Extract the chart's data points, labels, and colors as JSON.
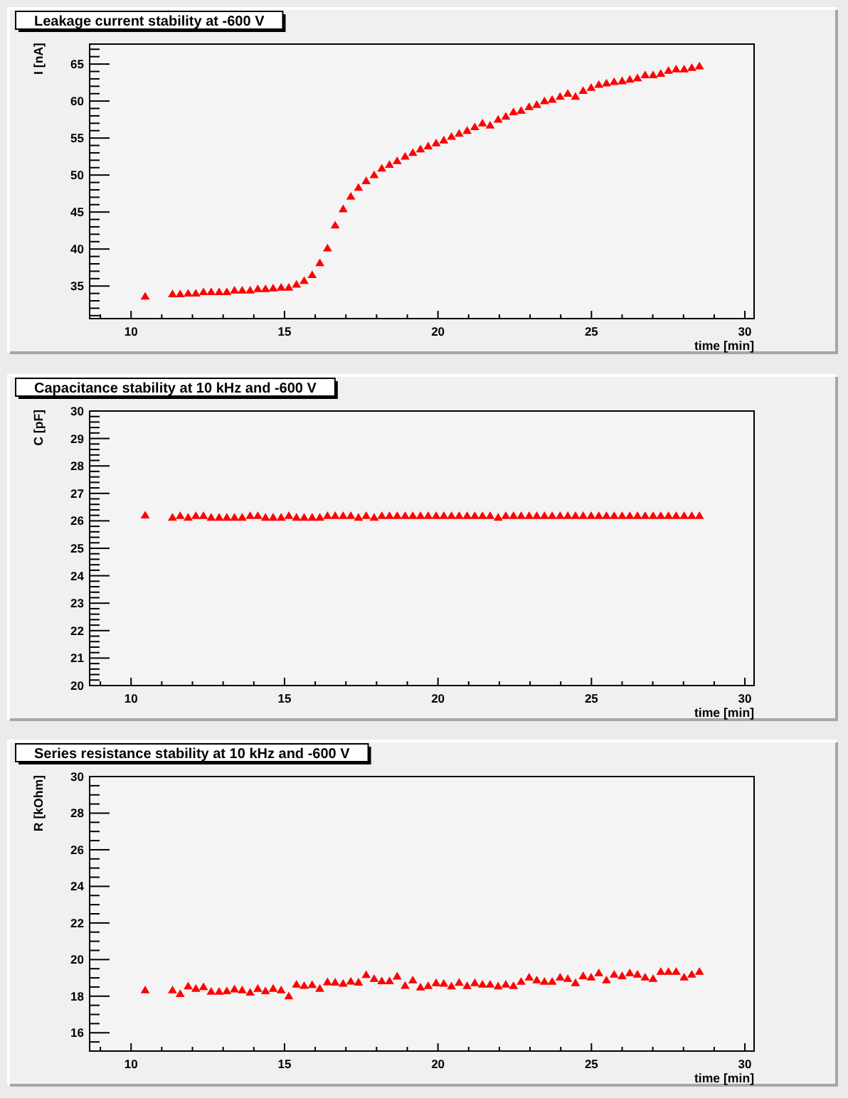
{
  "chart_data": [
    {
      "type": "scatter",
      "title": "Leakage current stability at -600 V",
      "xlabel": "time [min]",
      "ylabel": "I [nA]",
      "color": "#ff0000",
      "marker": "triangle",
      "x": [
        10.46,
        11.35,
        11.6,
        11.86,
        12.11,
        12.36,
        12.61,
        12.87,
        13.12,
        13.37,
        13.62,
        13.88,
        14.13,
        14.38,
        14.63,
        14.89,
        15.14,
        15.39,
        15.64,
        15.9,
        16.15,
        16.4,
        16.65,
        16.91,
        17.16,
        17.41,
        17.66,
        17.92,
        18.17,
        18.42,
        18.67,
        18.93,
        19.18,
        19.43,
        19.68,
        19.94,
        20.19,
        20.44,
        20.69,
        20.95,
        21.2,
        21.45,
        21.7,
        21.96,
        22.21,
        22.46,
        22.71,
        22.97,
        23.22,
        23.47,
        23.72,
        23.98,
        24.23,
        24.48,
        24.73,
        24.99,
        25.24,
        25.49,
        25.74,
        26.0,
        26.25,
        26.5,
        26.75,
        27.01,
        27.26,
        27.51,
        27.76,
        28.02,
        28.27,
        28.52
      ],
      "values": [
        33.6,
        33.9,
        33.9,
        34.0,
        34.0,
        34.2,
        34.2,
        34.2,
        34.2,
        34.4,
        34.4,
        34.4,
        34.6,
        34.6,
        34.7,
        34.8,
        34.8,
        35.2,
        35.7,
        36.5,
        38.1,
        40.1,
        43.2,
        45.4,
        47.1,
        48.3,
        49.2,
        50.0,
        50.9,
        51.4,
        51.9,
        52.5,
        53.0,
        53.5,
        53.9,
        54.3,
        54.7,
        55.2,
        55.6,
        56.0,
        56.5,
        57.0,
        56.7,
        57.5,
        57.9,
        58.5,
        58.7,
        59.2,
        59.5,
        60.0,
        60.2,
        60.6,
        61.0,
        60.6,
        61.4,
        61.8,
        62.2,
        62.4,
        62.6,
        62.7,
        62.9,
        63.1,
        63.5,
        63.5,
        63.7,
        64.1,
        64.3,
        64.3,
        64.5,
        64.7
      ],
      "xlim": [
        8.65,
        30.3
      ],
      "ylim": [
        30.6,
        67.7
      ],
      "xticks": [
        {
          "value": 9,
          "label": null
        },
        10,
        {
          "value": 11,
          "label": null
        },
        {
          "value": 12,
          "label": null
        },
        {
          "value": 13,
          "label": null
        },
        {
          "value": 14,
          "label": null
        },
        15,
        {
          "value": 16,
          "label": null
        },
        {
          "value": 17,
          "label": null
        },
        {
          "value": 18,
          "label": null
        },
        {
          "value": 19,
          "label": null
        },
        20,
        {
          "value": 21,
          "label": null
        },
        {
          "value": 22,
          "label": null
        },
        {
          "value": 23,
          "label": null
        },
        {
          "value": 24,
          "label": null
        },
        25,
        {
          "value": 26,
          "label": null
        },
        {
          "value": 27,
          "label": null
        },
        {
          "value": 28,
          "label": null
        },
        {
          "value": 29,
          "label": null
        },
        30
      ],
      "yticks": [
        {
          "value": 31,
          "label": null
        },
        {
          "value": 32,
          "label": null
        },
        {
          "value": 33,
          "label": null
        },
        {
          "value": 34,
          "label": null
        },
        35,
        {
          "value": 36,
          "label": null
        },
        {
          "value": 37,
          "label": null
        },
        {
          "value": 38,
          "label": null
        },
        {
          "value": 39,
          "label": null
        },
        40,
        {
          "value": 41,
          "label": null
        },
        {
          "value": 42,
          "label": null
        },
        {
          "value": 43,
          "label": null
        },
        {
          "value": 44,
          "label": null
        },
        45,
        {
          "value": 46,
          "label": null
        },
        {
          "value": 47,
          "label": null
        },
        {
          "value": 48,
          "label": null
        },
        {
          "value": 49,
          "label": null
        },
        50,
        {
          "value": 51,
          "label": null
        },
        {
          "value": 52,
          "label": null
        },
        {
          "value": 53,
          "label": null
        },
        {
          "value": 54,
          "label": null
        },
        55,
        {
          "value": 56,
          "label": null
        },
        {
          "value": 57,
          "label": null
        },
        {
          "value": 58,
          "label": null
        },
        {
          "value": 59,
          "label": null
        },
        60,
        {
          "value": 61,
          "label": null
        },
        {
          "value": 62,
          "label": null
        },
        {
          "value": 63,
          "label": null
        },
        {
          "value": 64,
          "label": null
        },
        65,
        {
          "value": 66,
          "label": null
        },
        {
          "value": 67,
          "label": null
        }
      ]
    },
    {
      "type": "scatter",
      "title": "Capacitance stability at 10 kHz and -600 V",
      "xlabel": "time [min]",
      "ylabel": "C [pF]",
      "color": "#ff0000",
      "marker": "triangle",
      "x": [
        10.46,
        11.35,
        11.6,
        11.86,
        12.11,
        12.36,
        12.61,
        12.87,
        13.12,
        13.37,
        13.62,
        13.88,
        14.13,
        14.38,
        14.63,
        14.89,
        15.14,
        15.39,
        15.64,
        15.9,
        16.15,
        16.4,
        16.65,
        16.91,
        17.16,
        17.41,
        17.66,
        17.92,
        18.17,
        18.42,
        18.67,
        18.93,
        19.18,
        19.43,
        19.68,
        19.94,
        20.19,
        20.44,
        20.69,
        20.95,
        21.2,
        21.45,
        21.7,
        21.96,
        22.21,
        22.46,
        22.71,
        22.97,
        23.22,
        23.47,
        23.72,
        23.98,
        24.23,
        24.48,
        24.73,
        24.99,
        25.24,
        25.49,
        25.74,
        26.0,
        26.25,
        26.5,
        26.75,
        27.01,
        27.26,
        27.51,
        27.76,
        28.02,
        28.27,
        28.52
      ],
      "values": [
        26.2,
        26.12,
        26.18,
        26.12,
        26.18,
        26.18,
        26.12,
        26.12,
        26.12,
        26.12,
        26.12,
        26.18,
        26.18,
        26.12,
        26.12,
        26.12,
        26.18,
        26.12,
        26.12,
        26.12,
        26.12,
        26.18,
        26.18,
        26.18,
        26.18,
        26.12,
        26.18,
        26.12,
        26.18,
        26.18,
        26.18,
        26.18,
        26.18,
        26.18,
        26.18,
        26.18,
        26.18,
        26.18,
        26.18,
        26.18,
        26.18,
        26.18,
        26.18,
        26.12,
        26.18,
        26.18,
        26.18,
        26.18,
        26.18,
        26.18,
        26.18,
        26.18,
        26.18,
        26.18,
        26.18,
        26.18,
        26.18,
        26.18,
        26.18,
        26.18,
        26.18,
        26.18,
        26.18,
        26.18,
        26.18,
        26.18,
        26.18,
        26.18,
        26.18,
        26.18
      ],
      "xlim": [
        8.65,
        30.3
      ],
      "ylim": [
        20,
        30
      ],
      "xticks": [
        {
          "value": 9,
          "label": null
        },
        10,
        {
          "value": 11,
          "label": null
        },
        {
          "value": 12,
          "label": null
        },
        {
          "value": 13,
          "label": null
        },
        {
          "value": 14,
          "label": null
        },
        15,
        {
          "value": 16,
          "label": null
        },
        {
          "value": 17,
          "label": null
        },
        {
          "value": 18,
          "label": null
        },
        {
          "value": 19,
          "label": null
        },
        20,
        {
          "value": 21,
          "label": null
        },
        {
          "value": 22,
          "label": null
        },
        {
          "value": 23,
          "label": null
        },
        {
          "value": 24,
          "label": null
        },
        25,
        {
          "value": 26,
          "label": null
        },
        {
          "value": 27,
          "label": null
        },
        {
          "value": 28,
          "label": null
        },
        {
          "value": 29,
          "label": null
        },
        30
      ],
      "yticks": [
        20,
        {
          "value": 20.2,
          "label": null
        },
        {
          "value": 20.4,
          "label": null
        },
        {
          "value": 20.6,
          "label": null
        },
        {
          "value": 20.8,
          "label": null
        },
        21,
        {
          "value": 21.2,
          "label": null
        },
        {
          "value": 21.4,
          "label": null
        },
        {
          "value": 21.6,
          "label": null
        },
        {
          "value": 21.8,
          "label": null
        },
        22,
        {
          "value": 22.2,
          "label": null
        },
        {
          "value": 22.4,
          "label": null
        },
        {
          "value": 22.6,
          "label": null
        },
        {
          "value": 22.8,
          "label": null
        },
        23,
        {
          "value": 23.2,
          "label": null
        },
        {
          "value": 23.4,
          "label": null
        },
        {
          "value": 23.6,
          "label": null
        },
        {
          "value": 23.8,
          "label": null
        },
        24,
        {
          "value": 24.2,
          "label": null
        },
        {
          "value": 24.4,
          "label": null
        },
        {
          "value": 24.6,
          "label": null
        },
        {
          "value": 24.8,
          "label": null
        },
        25,
        {
          "value": 25.2,
          "label": null
        },
        {
          "value": 25.4,
          "label": null
        },
        {
          "value": 25.6,
          "label": null
        },
        {
          "value": 25.8,
          "label": null
        },
        26,
        {
          "value": 26.2,
          "label": null
        },
        {
          "value": 26.4,
          "label": null
        },
        {
          "value": 26.6,
          "label": null
        },
        {
          "value": 26.8,
          "label": null
        },
        27,
        {
          "value": 27.2,
          "label": null
        },
        {
          "value": 27.4,
          "label": null
        },
        {
          "value": 27.6,
          "label": null
        },
        {
          "value": 27.8,
          "label": null
        },
        28,
        {
          "value": 28.2,
          "label": null
        },
        {
          "value": 28.4,
          "label": null
        },
        {
          "value": 28.6,
          "label": null
        },
        {
          "value": 28.8,
          "label": null
        },
        29,
        {
          "value": 29.2,
          "label": null
        },
        {
          "value": 29.4,
          "label": null
        },
        {
          "value": 29.6,
          "label": null
        },
        {
          "value": 29.8,
          "label": null
        },
        30
      ]
    },
    {
      "type": "scatter",
      "title": "Series resistance stability at 10 kHz and -600 V",
      "xlabel": "time [min]",
      "ylabel": "R [kOhm]",
      "color": "#ff0000",
      "marker": "triangle",
      "x": [
        10.46,
        11.35,
        11.6,
        11.86,
        12.11,
        12.36,
        12.61,
        12.87,
        13.12,
        13.37,
        13.62,
        13.88,
        14.13,
        14.38,
        14.63,
        14.89,
        15.14,
        15.39,
        15.64,
        15.9,
        16.15,
        16.4,
        16.65,
        16.91,
        17.16,
        17.41,
        17.66,
        17.92,
        18.17,
        18.42,
        18.67,
        18.93,
        19.18,
        19.43,
        19.68,
        19.94,
        20.19,
        20.44,
        20.69,
        20.95,
        21.2,
        21.45,
        21.7,
        21.96,
        22.21,
        22.46,
        22.71,
        22.97,
        23.22,
        23.47,
        23.72,
        23.98,
        24.23,
        24.48,
        24.73,
        24.99,
        25.24,
        25.49,
        25.74,
        26.0,
        26.25,
        26.5,
        26.75,
        27.01,
        27.26,
        27.51,
        27.76,
        28.02,
        28.27,
        28.52
      ],
      "values": [
        18.33,
        18.33,
        18.12,
        18.54,
        18.41,
        18.5,
        18.25,
        18.25,
        18.28,
        18.38,
        18.33,
        18.2,
        18.41,
        18.28,
        18.41,
        18.33,
        18.0,
        18.64,
        18.57,
        18.62,
        18.41,
        18.77,
        18.75,
        18.69,
        18.8,
        18.75,
        19.16,
        18.95,
        18.82,
        18.82,
        19.08,
        18.57,
        18.87,
        18.48,
        18.56,
        18.72,
        18.69,
        18.54,
        18.74,
        18.56,
        18.72,
        18.64,
        18.64,
        18.54,
        18.64,
        18.56,
        18.79,
        19.03,
        18.87,
        18.79,
        18.79,
        19.03,
        18.95,
        18.72,
        19.1,
        19.03,
        19.26,
        18.87,
        19.18,
        19.1,
        19.26,
        19.18,
        19.03,
        18.95,
        19.34,
        19.34,
        19.34,
        19.03,
        19.18,
        19.34
      ],
      "xlim": [
        8.65,
        30.3
      ],
      "ylim": [
        15,
        30
      ],
      "xticks": [
        {
          "value": 9,
          "label": null
        },
        10,
        {
          "value": 11,
          "label": null
        },
        {
          "value": 12,
          "label": null
        },
        {
          "value": 13,
          "label": null
        },
        {
          "value": 14,
          "label": null
        },
        15,
        {
          "value": 16,
          "label": null
        },
        {
          "value": 17,
          "label": null
        },
        {
          "value": 18,
          "label": null
        },
        {
          "value": 19,
          "label": null
        },
        20,
        {
          "value": 21,
          "label": null
        },
        {
          "value": 22,
          "label": null
        },
        {
          "value": 23,
          "label": null
        },
        {
          "value": 24,
          "label": null
        },
        25,
        {
          "value": 26,
          "label": null
        },
        {
          "value": 27,
          "label": null
        },
        {
          "value": 28,
          "label": null
        },
        {
          "value": 29,
          "label": null
        },
        30
      ],
      "yticks": [
        {
          "value": 15,
          "label": null
        },
        {
          "value": 15.5,
          "label": null
        },
        16,
        {
          "value": 16.5,
          "label": null
        },
        {
          "value": 17,
          "label": null
        },
        {
          "value": 17.5,
          "label": null
        },
        18,
        {
          "value": 18.5,
          "label": null
        },
        {
          "value": 19,
          "label": null
        },
        {
          "value": 19.5,
          "label": null
        },
        20,
        {
          "value": 20.5,
          "label": null
        },
        {
          "value": 21,
          "label": null
        },
        {
          "value": 21.5,
          "label": null
        },
        22,
        {
          "value": 22.5,
          "label": null
        },
        {
          "value": 23,
          "label": null
        },
        {
          "value": 23.5,
          "label": null
        },
        24,
        {
          "value": 24.5,
          "label": null
        },
        {
          "value": 25,
          "label": null
        },
        {
          "value": 25.5,
          "label": null
        },
        26,
        {
          "value": 26.5,
          "label": null
        },
        {
          "value": 27,
          "label": null
        },
        {
          "value": 27.5,
          "label": null
        },
        28,
        {
          "value": 28.5,
          "label": null
        },
        {
          "value": 29,
          "label": null
        },
        {
          "value": 29.5,
          "label": null
        },
        30
      ]
    }
  ]
}
